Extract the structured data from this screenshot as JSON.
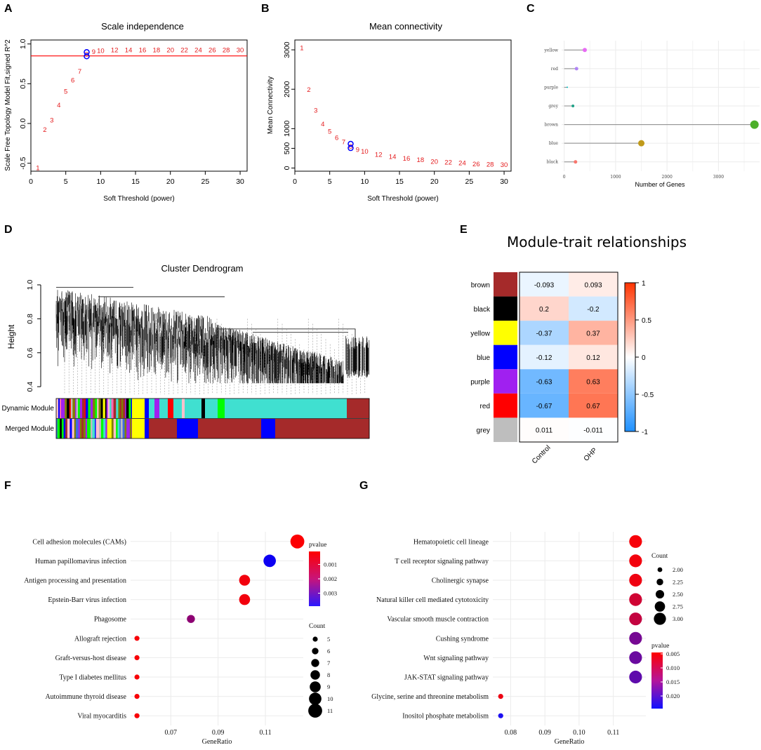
{
  "panel_labels": [
    "A",
    "B",
    "C",
    "D",
    "E",
    "F",
    "G"
  ],
  "colors": {
    "red": "#e41a1c",
    "blue": "#0000ff",
    "turquoise": "#40e0d0",
    "brown": "#a52a2a",
    "yellow": "#ffff00",
    "black": "#000000",
    "purple": "#a020f0",
    "grey": "#bebebe",
    "grid": "#ebebeb",
    "panelbg": "#ffffff"
  },
  "chart_data": [
    {
      "id": "A",
      "type": "scatter",
      "title": "Scale independence",
      "xlabel": "Soft Threshold (power)",
      "ylabel": "Scale Free Topology Model Fit,signed R^2",
      "xlim": [
        0,
        31
      ],
      "ylim": [
        -0.6,
        1.05
      ],
      "xticks": [
        0,
        5,
        10,
        15,
        20,
        25,
        30
      ],
      "yticks": [
        -0.5,
        0.0,
        0.5,
        1.0
      ],
      "ytick_labels": [
        "-0.5",
        "0.0",
        "0.5",
        "1.0"
      ],
      "hline": 0.85,
      "powers": [
        1,
        2,
        3,
        4,
        5,
        6,
        7,
        8,
        9,
        10,
        12,
        14,
        16,
        18,
        20,
        22,
        24,
        26,
        28,
        30
      ],
      "values": [
        -0.55,
        -0.07,
        0.05,
        0.24,
        0.41,
        0.55,
        0.66,
        0.88,
        0.91,
        0.92,
        0.93,
        0.93,
        0.93,
        0.93,
        0.93,
        0.93,
        0.93,
        0.93,
        0.93,
        0.93
      ],
      "selected_power": 8
    },
    {
      "id": "B",
      "type": "scatter",
      "title": "Mean connectivity",
      "xlabel": "Soft Threshold (power)",
      "ylabel": "Mean Connectivity",
      "xlim": [
        0,
        31
      ],
      "ylim": [
        -80,
        3250
      ],
      "xticks": [
        0,
        5,
        10,
        15,
        20,
        25,
        30
      ],
      "yticks": [
        0,
        500,
        1000,
        2000,
        3000
      ],
      "powers": [
        1,
        2,
        3,
        4,
        5,
        6,
        7,
        8,
        9,
        10,
        12,
        14,
        16,
        18,
        20,
        22,
        24,
        26,
        28,
        30
      ],
      "values": [
        3060,
        2000,
        1480,
        1130,
        940,
        780,
        680,
        560,
        480,
        440,
        360,
        300,
        260,
        220,
        180,
        160,
        140,
        120,
        110,
        100
      ],
      "selected_power": 8
    },
    {
      "id": "D",
      "type": "lollipop",
      "categories": [
        "yellow",
        "red",
        "purple",
        "grey",
        "brown",
        "blue",
        "black"
      ],
      "values": [
        400,
        240,
        60,
        170,
        3700,
        1500,
        220
      ],
      "dot_colors": [
        "#e76bf3",
        "#b085f5",
        "#00bfc4",
        "#1fa187",
        "#4daf2a",
        "#c09a1a",
        "#f8766d"
      ],
      "dot_size": [
        3,
        2.5,
        1,
        2,
        6,
        4.5,
        2.5
      ],
      "xlabel": "Number of Genes",
      "xlim": [
        -50,
        3800
      ],
      "xticks": [
        0,
        1000,
        2000,
        3000
      ]
    },
    {
      "id": "C",
      "type": "dendrogram",
      "title": "Cluster Dendrogram",
      "ylabel": "Height",
      "ylim": [
        0.38,
        1.0
      ],
      "yticks": [
        0.4,
        0.6,
        0.8,
        1.0
      ],
      "ytick_labels": [
        "0.4",
        "0.6",
        "0.8",
        "1.0"
      ],
      "row_labels": [
        "Dynamic Module",
        "Merged Module"
      ]
    },
    {
      "id": "E",
      "type": "heatmap",
      "title": "Module-trait relationships",
      "rows": [
        "brown",
        "black",
        "yellow",
        "blue",
        "purple",
        "red",
        "grey"
      ],
      "row_colors": [
        "#a52a2a",
        "#000000",
        "#ffff00",
        "#0000ff",
        "#a020f0",
        "#ff0000",
        "#bebebe"
      ],
      "columns": [
        "Control",
        "OHP"
      ],
      "values": [
        [
          -0.093,
          0.093
        ],
        [
          0.2,
          -0.2
        ],
        [
          -0.37,
          0.37
        ],
        [
          -0.12,
          0.12
        ],
        [
          -0.63,
          0.63
        ],
        [
          -0.67,
          0.67
        ],
        [
          0.011,
          -0.011
        ]
      ],
      "cell_labels": [
        [
          "-0.093",
          "0.093"
        ],
        [
          "0.2",
          "-0.2"
        ],
        [
          "-0.37",
          "0.37"
        ],
        [
          "-0.12",
          "0.12"
        ],
        [
          "-0.63",
          "0.63"
        ],
        [
          "-0.67",
          "0.67"
        ],
        [
          "0.011",
          "-0.011"
        ]
      ],
      "legend_range": [
        -1,
        1
      ],
      "legend_ticks": [
        1,
        0.5,
        0,
        -0.5,
        -1
      ],
      "legend_tick_labels": [
        "1",
        "0.5",
        "0",
        "-0.5",
        "-1"
      ]
    },
    {
      "id": "F",
      "type": "scatter",
      "subtype": "dotplot",
      "xlabel": "GeneRatio",
      "xlim": [
        0.053,
        0.126
      ],
      "xticks": [
        0.07,
        0.09,
        0.11
      ],
      "xtick_labels": [
        "0.07",
        "0.09",
        "0.11"
      ],
      "categories": [
        "Cell adhesion molecules (CAMs)",
        "Human papillomavirus infection",
        "Antigen processing and presentation",
        "Epstein-Barr virus infection",
        "Phagosome",
        "Allograft rejection",
        "Graft-versus-host disease",
        "Type I diabetes mellitus",
        "Autoimmune thyroid disease",
        "Viral myocarditis"
      ],
      "gene_ratio": [
        0.1235,
        0.1118,
        0.1012,
        0.1012,
        0.0785,
        0.0557,
        0.0557,
        0.0557,
        0.0557,
        0.0557
      ],
      "count": [
        11,
        10,
        9,
        9,
        7,
        5,
        5,
        5,
        5,
        5
      ],
      "pvalue": [
        0.00015,
        0.0037,
        0.0003,
        0.0003,
        0.0018,
        0.0002,
        0.0002,
        0.0002,
        0.0002,
        0.0002
      ],
      "size_legend_title": "Count",
      "size_legend_values": [
        5,
        6,
        7,
        8,
        9,
        10,
        11
      ],
      "color_legend_title": "pvalue",
      "color_legend_range": [
        0.0001,
        0.0039
      ],
      "color_legend_ticks": [
        0.001,
        0.002,
        0.003
      ],
      "color_legend_labels": [
        "0.001",
        "0.002",
        "0.003"
      ]
    },
    {
      "id": "G",
      "type": "scatter",
      "subtype": "dotplot",
      "xlabel": "GeneRatio",
      "xlim": [
        0.0748,
        0.1195
      ],
      "xticks": [
        0.08,
        0.09,
        0.1,
        0.11
      ],
      "xtick_labels": [
        "0.08",
        "0.09",
        "0.10",
        "0.11"
      ],
      "categories": [
        "Hematopoietic cell lineage",
        "T cell receptor signaling pathway",
        "Cholinergic synapse",
        "Natural killer cell mediated cytotoxicity",
        "Vascular smooth muscle contraction",
        "Cushing syndrome",
        "Wnt signaling pathway",
        "JAK-STAT signaling pathway",
        "Glycine, serine and threonine metabolism",
        "Inositol phosphate metabolism"
      ],
      "gene_ratio": [
        0.1165,
        0.1165,
        0.1165,
        0.1165,
        0.1165,
        0.1165,
        0.1165,
        0.1165,
        0.0771,
        0.0771
      ],
      "count": [
        3,
        3,
        3,
        3,
        3,
        3,
        3,
        3,
        2,
        2
      ],
      "pvalue": [
        0.0052,
        0.0055,
        0.0058,
        0.0085,
        0.0095,
        0.016,
        0.017,
        0.018,
        0.006,
        0.0235
      ],
      "size_legend_title": "Count",
      "size_legend_values": [
        2.0,
        2.25,
        2.5,
        2.75,
        3.0
      ],
      "size_legend_labels": [
        "2.00",
        "2.25",
        "2.50",
        "2.75",
        "3.00"
      ],
      "color_legend_title": "pvalue",
      "color_legend_range": [
        0.0245,
        0.0045
      ],
      "color_legend_ticks": [
        0.005,
        0.01,
        0.015,
        0.02
      ],
      "color_legend_labels": [
        "0.005",
        "0.010",
        "0.015",
        "0.020"
      ]
    }
  ]
}
